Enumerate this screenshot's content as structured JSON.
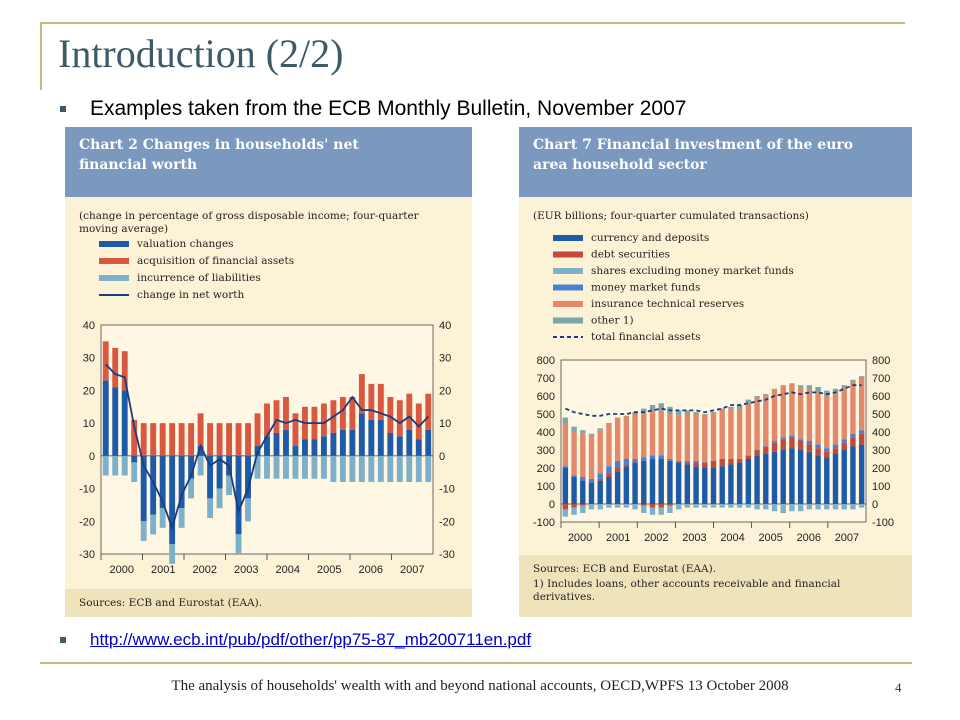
{
  "slide": {
    "title": "Introduction (2/2)",
    "bullet1": "Examples taken from the ECB Monthly Bulletin, November 2007",
    "link": "http://www.ecb.int/pub/pdf/other/pp75-87_mb200711en.pdf",
    "footer": "The analysis of households' wealth with and beyond national accounts, OECD,WPFS 13 October 2008",
    "page_number": "4",
    "colors": {
      "accent": "#3d5a67",
      "rule": "#c9b984",
      "header_band": "#7b98bf",
      "chart_bg": "#fcf3d7",
      "footnote_bg": "#efe3bb"
    }
  },
  "chart_data": [
    {
      "type": "bar",
      "title": "Chart 2 Changes in households' net financial worth",
      "subtitle": "(change in percentage of gross disposable income; four-quarter moving average)",
      "ylim": [
        -30,
        40
      ],
      "yticks": [
        40,
        30,
        20,
        10,
        0,
        -10,
        -20,
        -30
      ],
      "xlabels": [
        "2000",
        "2001",
        "2002",
        "2003",
        "2004",
        "2005",
        "2006",
        "2007"
      ],
      "legend": [
        "valuation changes",
        "acquisition of financial assets",
        "incurrence of liabilities",
        "change in net worth"
      ],
      "series": [
        {
          "name": "valuation changes",
          "color": "#1d5aa8",
          "values": [
            23,
            21,
            20,
            -2,
            -20,
            -18,
            -16,
            -27,
            -16,
            -7,
            3,
            -13,
            -10,
            -6,
            -24,
            -13,
            3,
            6,
            7,
            8,
            3,
            5,
            5,
            6,
            7,
            8,
            8,
            13,
            11,
            11,
            7,
            6,
            8,
            5,
            8
          ]
        },
        {
          "name": "acquisition of financial assets",
          "color": "#d9583f",
          "values": [
            12,
            12,
            12,
            11,
            10,
            10,
            10,
            10,
            10,
            10,
            10,
            10,
            10,
            10,
            10,
            10,
            10,
            10,
            10,
            10,
            10,
            10,
            10,
            10,
            10,
            10,
            10,
            12,
            11,
            11,
            11,
            11,
            11,
            11,
            11
          ]
        },
        {
          "name": "incurrence of liabilities",
          "color": "#7fb0c9",
          "values": [
            -6,
            -6,
            -6,
            -6,
            -6,
            -6,
            -6,
            -6,
            -6,
            -6,
            -6,
            -6,
            -6,
            -6,
            -6,
            -7,
            -7,
            -7,
            -7,
            -7,
            -7,
            -7,
            -7,
            -7,
            -8,
            -8,
            -8,
            -8,
            -8,
            -8,
            -8,
            -8,
            -8,
            -8,
            -8
          ]
        },
        {
          "name": "change in net worth",
          "color": "#1a3d7c",
          "values": [
            28,
            25,
            24,
            9,
            -3,
            -8,
            -14,
            -22,
            -12,
            -6,
            3,
            -3,
            -1,
            -3,
            -17,
            -10,
            1,
            6,
            11,
            10,
            11,
            10,
            10,
            10,
            12,
            14,
            18,
            14,
            14,
            13,
            12,
            10,
            12,
            9,
            12
          ]
        }
      ],
      "sources": "Sources: ECB and Eurostat (EAA)."
    },
    {
      "type": "bar",
      "title": "Chart 7 Financial investment of the euro area household sector",
      "subtitle": "(EUR billions; four-quarter cumulated transactions)",
      "ylim": [
        -100,
        800
      ],
      "yticks": [
        800,
        700,
        600,
        500,
        400,
        300,
        200,
        100,
        0,
        -100
      ],
      "xlabels": [
        "2000",
        "2001",
        "2002",
        "2003",
        "2004",
        "2005",
        "2006",
        "2007"
      ],
      "legend": [
        "currency and deposits",
        "debt securities",
        "shares excluding money market funds",
        "money market funds",
        "insurance technical reserves",
        "other 1)",
        "total financial assets"
      ],
      "series": [
        {
          "name": "currency and deposits",
          "color": "#1d5aa8",
          "values": [
            200,
            150,
            130,
            120,
            130,
            150,
            180,
            210,
            230,
            240,
            250,
            250,
            240,
            230,
            220,
            210,
            200,
            200,
            210,
            220,
            230,
            250,
            270,
            280,
            290,
            300,
            310,
            300,
            290,
            270,
            260,
            280,
            300,
            320,
            330
          ]
        },
        {
          "name": "debt securities",
          "color": "#c14a3a",
          "values": [
            -30,
            -20,
            -10,
            0,
            10,
            20,
            20,
            10,
            0,
            -10,
            -20,
            -20,
            -10,
            0,
            10,
            20,
            30,
            40,
            40,
            30,
            20,
            20,
            30,
            40,
            50,
            60,
            60,
            50,
            40,
            40,
            30,
            30,
            40,
            50,
            60
          ]
        },
        {
          "name": "shares excluding money market funds",
          "color": "#7fb0c9",
          "values": [
            -40,
            -40,
            -40,
            -30,
            -30,
            -20,
            -20,
            -20,
            -30,
            -40,
            -40,
            -40,
            -40,
            -30,
            -20,
            -20,
            -20,
            -20,
            -20,
            -20,
            -20,
            -20,
            -30,
            -30,
            -30,
            -40,
            -40,
            -40,
            -30,
            -30,
            -30,
            -30,
            -30,
            -30,
            -20
          ]
        },
        {
          "name": "money market funds",
          "color": "#4b7fd0",
          "values": [
            10,
            10,
            20,
            20,
            30,
            40,
            40,
            30,
            20,
            20,
            20,
            20,
            10,
            10,
            10,
            10,
            0,
            0,
            0,
            0,
            0,
            0,
            0,
            0,
            10,
            10,
            10,
            10,
            20,
            20,
            20,
            20,
            20,
            20,
            20
          ]
        },
        {
          "name": "insurance technical reserves",
          "color": "#e3896b",
          "values": [
            240,
            240,
            240,
            240,
            240,
            240,
            240,
            240,
            250,
            250,
            250,
            250,
            250,
            250,
            260,
            260,
            270,
            270,
            280,
            280,
            280,
            290,
            290,
            290,
            290,
            290,
            290,
            290,
            290,
            290,
            290,
            290,
            290,
            290,
            290
          ]
        },
        {
          "name": "other 1)",
          "color": "#7aa7a8",
          "values": [
            30,
            30,
            20,
            10,
            10,
            0,
            0,
            0,
            10,
            20,
            30,
            40,
            40,
            30,
            20,
            10,
            0,
            0,
            0,
            10,
            20,
            20,
            10,
            0,
            -10,
            -10,
            0,
            10,
            20,
            30,
            30,
            20,
            10,
            10,
            10
          ]
        },
        {
          "name": "total financial assets",
          "color": "#1a3d7c",
          "values": [
            530,
            510,
            500,
            490,
            490,
            500,
            500,
            500,
            510,
            510,
            520,
            530,
            520,
            520,
            520,
            520,
            510,
            520,
            530,
            550,
            550,
            560,
            570,
            580,
            600,
            610,
            620,
            610,
            620,
            620,
            610,
            620,
            640,
            660,
            660
          ]
        }
      ],
      "sources": "Sources: ECB and Eurostat (EAA).",
      "footnote": "1) Includes loans, other accounts receivable and financial derivatives."
    }
  ]
}
